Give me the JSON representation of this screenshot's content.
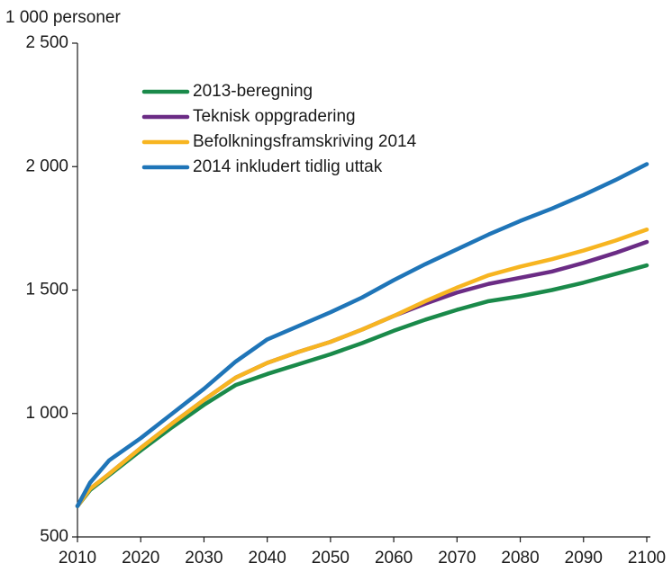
{
  "chart_data": {
    "type": "line",
    "y_axis_label": "1 000 personer",
    "x": [
      2010,
      2012,
      2015,
      2020,
      2025,
      2030,
      2035,
      2040,
      2045,
      2050,
      2055,
      2060,
      2065,
      2070,
      2075,
      2080,
      2085,
      2090,
      2095,
      2100
    ],
    "series": [
      {
        "name": "2013-beregning",
        "color": "#1a8a4a",
        "values": [
          625,
          690,
          750,
          850,
          945,
          1035,
          1115,
          1160,
          1200,
          1240,
          1285,
          1335,
          1380,
          1420,
          1455,
          1475,
          1500,
          1530,
          1565,
          1600
        ]
      },
      {
        "name": "Teknisk oppgradering",
        "color": "#6b2c85",
        "values": [
          625,
          695,
          755,
          860,
          960,
          1055,
          1145,
          1205,
          1250,
          1290,
          1340,
          1395,
          1445,
          1490,
          1525,
          1550,
          1575,
          1610,
          1650,
          1695
        ]
      },
      {
        "name": "Befolkningsframskriving 2014",
        "color": "#f7b521",
        "values": [
          625,
          695,
          755,
          860,
          960,
          1055,
          1145,
          1205,
          1250,
          1290,
          1340,
          1395,
          1455,
          1510,
          1560,
          1595,
          1625,
          1660,
          1700,
          1745
        ]
      },
      {
        "name": "2014 inkludert tidlig uttak",
        "color": "#1f75b8",
        "values": [
          625,
          720,
          810,
          900,
          1000,
          1100,
          1210,
          1300,
          1355,
          1410,
          1470,
          1540,
          1605,
          1665,
          1725,
          1780,
          1830,
          1885,
          1945,
          2010
        ]
      }
    ],
    "xlim": [
      2010,
      2100
    ],
    "xticks": [
      2010,
      2020,
      2030,
      2040,
      2050,
      2060,
      2070,
      2080,
      2090,
      2100
    ],
    "ylim": [
      500,
      2500
    ],
    "yticks": [
      500,
      {
        "value": 1000,
        "label": "1 000"
      },
      {
        "value": 1500,
        "label": "1 500"
      },
      {
        "value": 2000,
        "label": "2 000"
      },
      {
        "value": 2500,
        "label": "2 500"
      }
    ],
    "grid": false,
    "legend": "upper left"
  }
}
